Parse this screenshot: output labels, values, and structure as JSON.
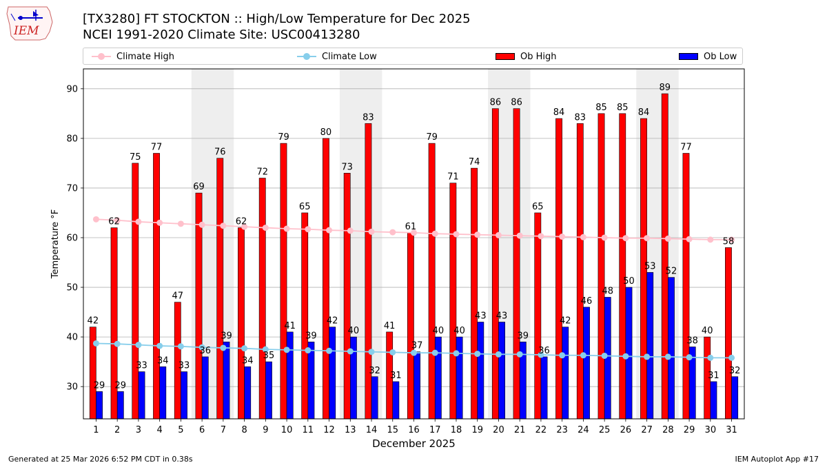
{
  "header": {
    "title_line1": "[TX3280] FT STOCKTON :: High/Low Temperature for Dec 2025",
    "title_line2": "NCEI 1991-2020 Climate Site: USC00413280",
    "logo_text": "IEM"
  },
  "legend": {
    "items": [
      {
        "label": "Climate High",
        "style": "line",
        "color": "#ffc0cb"
      },
      {
        "label": "Climate Low",
        "style": "line",
        "color": "#87ceeb"
      },
      {
        "label": "Ob High",
        "style": "box",
        "color": "#ff0000"
      },
      {
        "label": "Ob Low",
        "style": "box",
        "color": "#0000ff"
      }
    ]
  },
  "footer": {
    "left": "Generated at 25 Mar 2026 6:52 PM CDT in 0.38s",
    "right": "IEM Autoplot App #17"
  },
  "chart_data": {
    "type": "bar",
    "xlabel": "December 2025",
    "ylabel": "Temperature °F",
    "ylim": [
      23.5,
      94
    ],
    "yticks": [
      30,
      40,
      50,
      60,
      70,
      80,
      90
    ],
    "grid": true,
    "legend_position": "top",
    "categories": [
      "1",
      "2",
      "3",
      "4",
      "5",
      "6",
      "7",
      "8",
      "9",
      "10",
      "11",
      "12",
      "13",
      "14",
      "15",
      "16",
      "17",
      "18",
      "19",
      "20",
      "21",
      "22",
      "23",
      "24",
      "25",
      "26",
      "27",
      "28",
      "29",
      "30",
      "31"
    ],
    "weekend_shading": [
      [
        6,
        7
      ],
      [
        13,
        14
      ],
      [
        20,
        21
      ],
      [
        27,
        28
      ]
    ],
    "shading_color": "#eeeeee",
    "series": [
      {
        "name": "Ob High",
        "type": "bar",
        "color": "#ff0000",
        "values": [
          42,
          62,
          75,
          77,
          47,
          69,
          76,
          62,
          72,
          79,
          65,
          80,
          73,
          83,
          41,
          61,
          79,
          71,
          74,
          86,
          86,
          65,
          84,
          83,
          85,
          85,
          84,
          89,
          77,
          40,
          58
        ]
      },
      {
        "name": "Ob Low",
        "type": "bar",
        "color": "#0000ff",
        "values": [
          29,
          29,
          33,
          34,
          33,
          36,
          39,
          34,
          35,
          41,
          39,
          42,
          40,
          32,
          31,
          37,
          40,
          40,
          43,
          43,
          39,
          36,
          42,
          46,
          48,
          50,
          53,
          52,
          38,
          31,
          32
        ]
      },
      {
        "name": "Climate High",
        "type": "line",
        "color": "#ffc0cb",
        "values": [
          63.7,
          63.5,
          63.2,
          63.0,
          62.8,
          62.6,
          62.4,
          62.2,
          62.0,
          61.8,
          61.7,
          61.5,
          61.4,
          61.2,
          61.1,
          61.0,
          60.8,
          60.7,
          60.6,
          60.5,
          60.4,
          60.3,
          60.2,
          60.1,
          60.0,
          59.9,
          59.9,
          59.8,
          59.7,
          59.6,
          59.6
        ]
      },
      {
        "name": "Climate Low",
        "type": "line",
        "color": "#87ceeb",
        "values": [
          38.7,
          38.6,
          38.4,
          38.2,
          38.1,
          37.9,
          37.8,
          37.7,
          37.5,
          37.4,
          37.3,
          37.2,
          37.1,
          37.0,
          36.9,
          36.8,
          36.8,
          36.7,
          36.6,
          36.5,
          36.5,
          36.4,
          36.3,
          36.3,
          36.2,
          36.1,
          36.0,
          36.0,
          35.9,
          35.8,
          35.8
        ]
      }
    ]
  }
}
